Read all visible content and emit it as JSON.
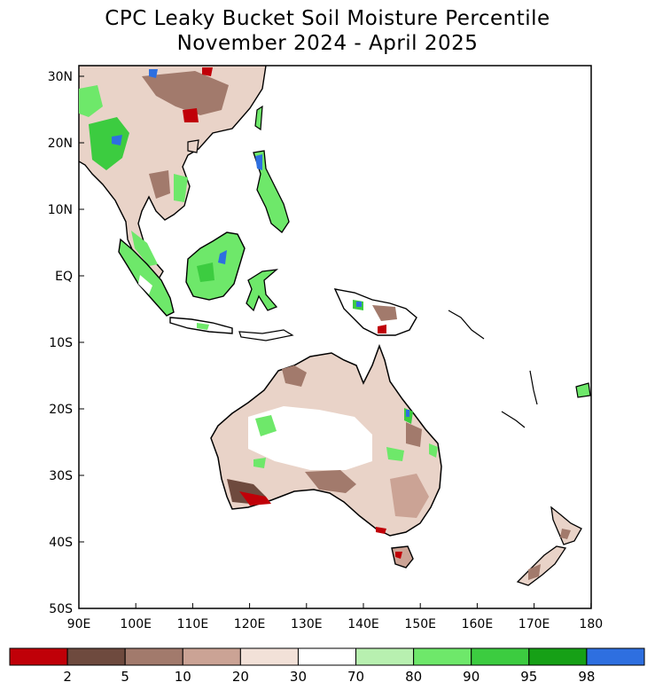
{
  "title_line1": "CPC Leaky Bucket Soil Moisture Percentile",
  "title_line2": "November 2024 - April 2025",
  "lat_ticks": [
    "30N",
    "20N",
    "10N",
    "EQ",
    "10S",
    "20S",
    "30S",
    "40S",
    "50S"
  ],
  "lon_ticks": [
    "90E",
    "100E",
    "110E",
    "120E",
    "130E",
    "140E",
    "150E",
    "160E",
    "170E",
    "180"
  ],
  "legend": {
    "colors": [
      "#c00008",
      "#6e4a3e",
      "#a27a6c",
      "#cba395",
      "#f2e1d8",
      "#ffffff",
      "#b8f0b0",
      "#6ee86a",
      "#3ccc40",
      "#16a016",
      "#2e6fe0"
    ],
    "labels": [
      "2",
      "5",
      "10",
      "20",
      "30",
      "70",
      "80",
      "90",
      "95",
      "98"
    ]
  },
  "colors": {
    "coast": "#000000",
    "dry_red": "#c00008",
    "dry_brown": "#6e4a3e",
    "wet_green": "#3ccc40",
    "wet_blue": "#2e6fe0"
  }
}
